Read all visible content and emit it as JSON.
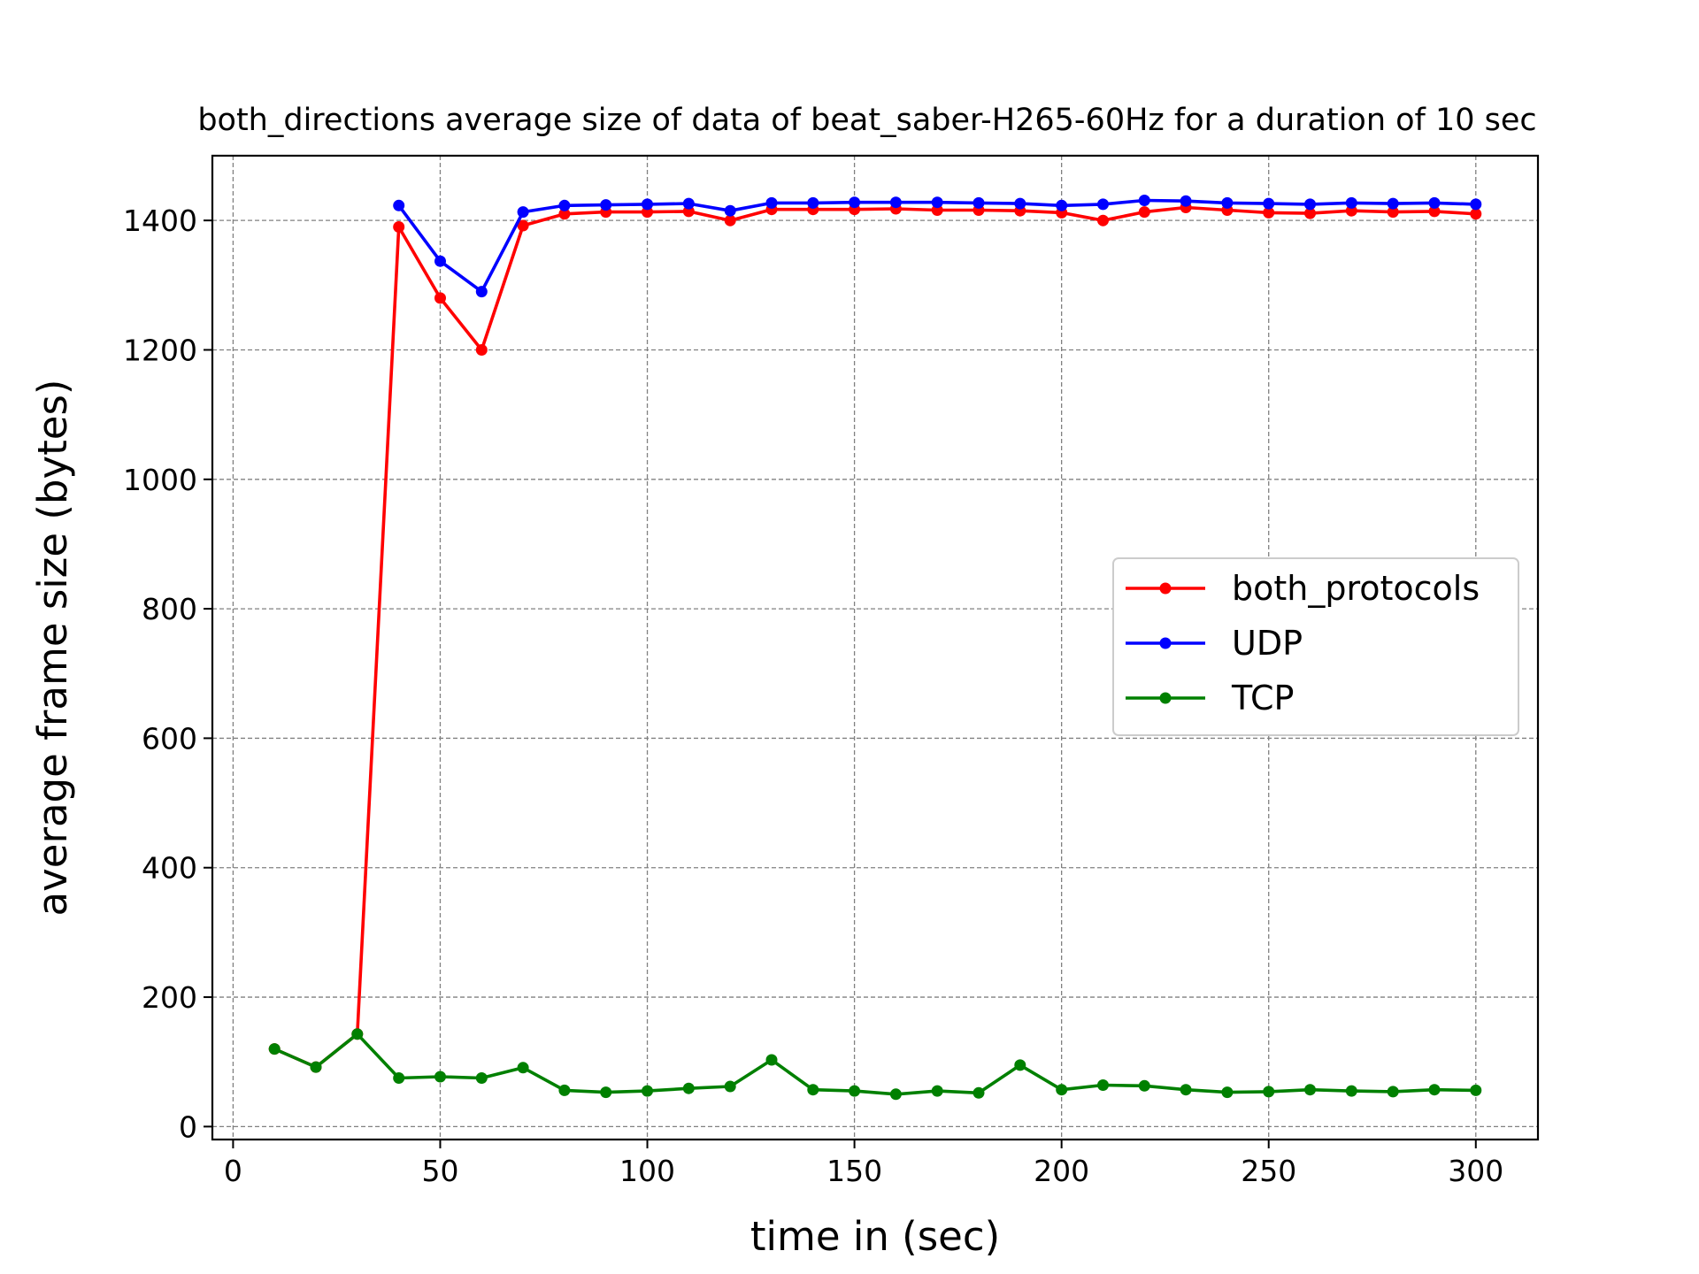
{
  "chart_data": {
    "type": "line",
    "title": "both_directions average size of data of beat_saber-H265-60Hz for a duration of 10 sec",
    "xlabel": "time in (sec)",
    "ylabel": "average frame size (bytes)",
    "xlim": [
      -5,
      315
    ],
    "ylim": [
      -20,
      1500
    ],
    "xticks": [
      0,
      50,
      100,
      150,
      200,
      250,
      300
    ],
    "yticks": [
      0,
      200,
      400,
      600,
      800,
      1000,
      1200,
      1400
    ],
    "grid": true,
    "legend_position": "center-right",
    "series": [
      {
        "name": "both_protocols",
        "color": "#ff0000",
        "x": [
          10,
          20,
          30,
          40,
          50,
          60,
          70,
          80,
          90,
          100,
          110,
          120,
          130,
          140,
          150,
          160,
          170,
          180,
          190,
          200,
          210,
          220,
          230,
          240,
          250,
          260,
          270,
          280,
          290,
          300
        ],
        "y": [
          120,
          92,
          143,
          1390,
          1280,
          1200,
          1392,
          1410,
          1413,
          1413,
          1414,
          1400,
          1417,
          1417,
          1417,
          1418,
          1416,
          1416,
          1415,
          1412,
          1400,
          1413,
          1420,
          1416,
          1412,
          1411,
          1415,
          1413,
          1414,
          1410
        ]
      },
      {
        "name": "UDP",
        "color": "#0000ff",
        "x": [
          40,
          50,
          60,
          70,
          80,
          90,
          100,
          110,
          120,
          130,
          140,
          150,
          160,
          170,
          180,
          190,
          200,
          210,
          220,
          230,
          240,
          250,
          260,
          270,
          280,
          290,
          300
        ],
        "y": [
          1423,
          1337,
          1290,
          1413,
          1423,
          1424,
          1425,
          1426,
          1415,
          1427,
          1427,
          1428,
          1428,
          1428,
          1427,
          1426,
          1423,
          1425,
          1431,
          1430,
          1427,
          1426,
          1425,
          1427,
          1426,
          1427,
          1425
        ]
      },
      {
        "name": "TCP",
        "color": "#008000",
        "x": [
          10,
          20,
          30,
          40,
          50,
          60,
          70,
          80,
          90,
          100,
          110,
          120,
          130,
          140,
          150,
          160,
          170,
          180,
          190,
          200,
          210,
          220,
          230,
          240,
          250,
          260,
          270,
          280,
          290,
          300
        ],
        "y": [
          120,
          92,
          143,
          75,
          77,
          75,
          91,
          56,
          53,
          55,
          59,
          62,
          103,
          57,
          55,
          50,
          55,
          52,
          95,
          57,
          64,
          63,
          57,
          53,
          54,
          57,
          55,
          54,
          57,
          56
        ]
      }
    ]
  }
}
